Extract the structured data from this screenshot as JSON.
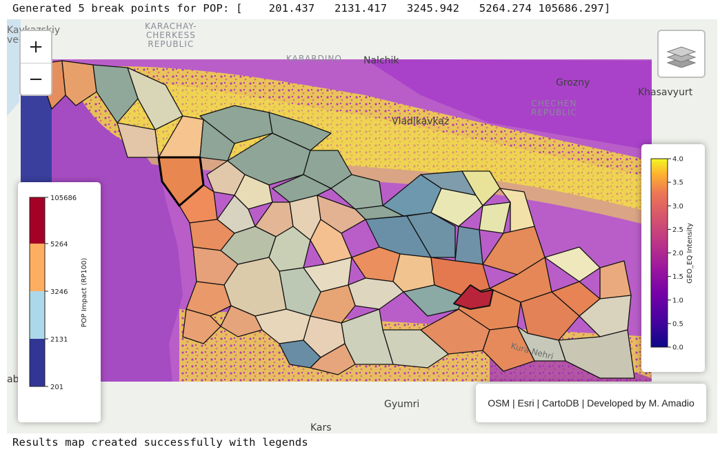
{
  "log": {
    "top": "Generated 5 break points for POP: [    201.437   2131.417   3245.942   5264.274 105686.297]",
    "bottom": "Results map created successfully with legends"
  },
  "map": {
    "places": {
      "kavkazskiy": "Kavkazskiy",
      "svednik": "vednik",
      "karachay": "KARACHAY-\nCHERKESS\nREPUBLIC",
      "kabardino": "KABARDINO",
      "nalchik": "Nalchik",
      "grozny": "Grozny",
      "khasavyurt": "Khasavyurt",
      "chechen": "CHECHEN\nREPUBLIC",
      "vladikavkaz": "Vladikavkaz",
      "kura": "Kura Nehri",
      "gyumri": "Gyumri",
      "kars": "Kars",
      "ab": "ab"
    },
    "zoom_in": "+",
    "zoom_out": "−",
    "layers_icon": "layers-icon"
  },
  "pop_legend": {
    "title": "POP Impact (RP100)",
    "breaks": [
      "105686",
      "5264",
      "3246",
      "2131",
      "201"
    ],
    "colors": [
      "#a50026",
      "#fdae61",
      "#abd9e9",
      "#313695"
    ]
  },
  "geo_legend": {
    "title": "GEO_EQ Intensity",
    "ticks": [
      "4.0",
      "3.5",
      "3.0",
      "2.5",
      "2.0",
      "1.5",
      "1.0",
      "0.5",
      "0.0"
    ],
    "colormap": "plasma"
  },
  "attribution": "OSM | Esri | CartoDB | Developed by M. Amadio"
}
